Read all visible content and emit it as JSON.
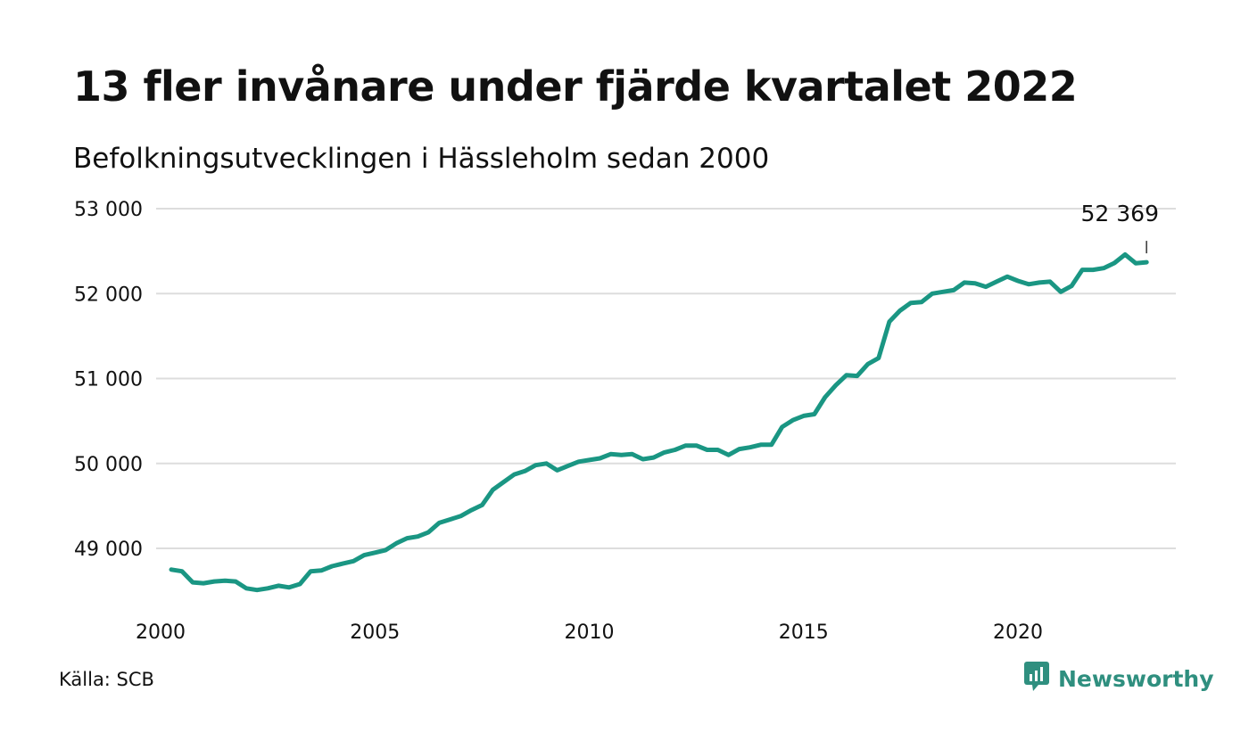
{
  "header": {
    "title": "13 fler invånare under fjärde kvartalet 2022",
    "subtitle": "Befolkningsutvecklingen i Hässleholm sedan 2000"
  },
  "footer": {
    "source": "Källa: SCB",
    "brand": "Newsworthy",
    "brand_color": "#2f8f7f"
  },
  "chart_data": {
    "type": "line",
    "line_color": "#1a9683",
    "grid": true,
    "ylim": [
      48400,
      53000
    ],
    "xlim": [
      2000,
      2023.9
    ],
    "y_ticks": [
      {
        "value": 49000,
        "label": "49 000"
      },
      {
        "value": 50000,
        "label": "50 000"
      },
      {
        "value": 51000,
        "label": "51 000"
      },
      {
        "value": 52000,
        "label": "52 000"
      },
      {
        "value": 53000,
        "label": "53 000"
      }
    ],
    "x_ticks": [
      {
        "value": 2000,
        "label": "2000"
      },
      {
        "value": 2005,
        "label": "2005"
      },
      {
        "value": 2010,
        "label": "2010"
      },
      {
        "value": 2015,
        "label": "2015"
      },
      {
        "value": 2020,
        "label": "2020"
      }
    ],
    "last_value_label": "52 369",
    "series": [
      {
        "x": [
          2000.25,
          2000.5,
          2000.75,
          2001.0,
          2001.25,
          2001.5,
          2001.75,
          2002.0,
          2002.25,
          2002.5,
          2002.75,
          2003.0,
          2003.25,
          2003.5,
          2003.75,
          2004.0,
          2004.25,
          2004.5,
          2004.75,
          2005.0,
          2005.25,
          2005.5,
          2005.75,
          2006.0,
          2006.25,
          2006.5,
          2006.75,
          2007.0,
          2007.25,
          2007.5,
          2007.75,
          2008.0,
          2008.25,
          2008.5,
          2008.75,
          2009.0,
          2009.25,
          2009.5,
          2009.75,
          2010.0,
          2010.25,
          2010.5,
          2010.75,
          2011.0,
          2011.25,
          2011.5,
          2011.75,
          2012.0,
          2012.25,
          2012.5,
          2012.75,
          2013.0,
          2013.25,
          2013.5,
          2013.75,
          2014.0,
          2014.25,
          2014.5,
          2014.75,
          2015.0,
          2015.25,
          2015.5,
          2015.75,
          2016.0,
          2016.25,
          2016.5,
          2016.75,
          2017.0,
          2017.25,
          2017.5,
          2017.75,
          2018.0,
          2018.25,
          2018.5,
          2018.75,
          2019.0,
          2019.25,
          2019.5,
          2019.75,
          2020.0,
          2020.25,
          2020.5,
          2020.75,
          2021.0,
          2021.25,
          2021.5,
          2021.75,
          2022.0,
          2022.25,
          2022.5,
          2022.75,
          2023.0
        ],
        "values": [
          48750,
          48730,
          48600,
          48590,
          48610,
          48620,
          48610,
          48530,
          48510,
          48530,
          48560,
          48540,
          48580,
          48730,
          48740,
          48790,
          48820,
          48850,
          48920,
          48950,
          48980,
          49060,
          49120,
          49140,
          49190,
          49300,
          49340,
          49380,
          49450,
          49510,
          49690,
          49780,
          49870,
          49910,
          49980,
          50000,
          49920,
          49970,
          50020,
          50040,
          50060,
          50110,
          50100,
          50110,
          50050,
          50070,
          50130,
          50160,
          50210,
          50210,
          50160,
          50160,
          50100,
          50170,
          50190,
          50220,
          50220,
          50430,
          50510,
          50560,
          50580,
          50780,
          50920,
          51040,
          51030,
          51170,
          51240,
          51670,
          51800,
          51890,
          51900,
          52000,
          52020,
          52040,
          52130,
          52120,
          52080,
          52140,
          52200,
          52150,
          52110,
          52130,
          52140,
          52020,
          52090,
          52280,
          52280,
          52300,
          52360,
          52460,
          52356,
          52369
        ]
      }
    ]
  }
}
